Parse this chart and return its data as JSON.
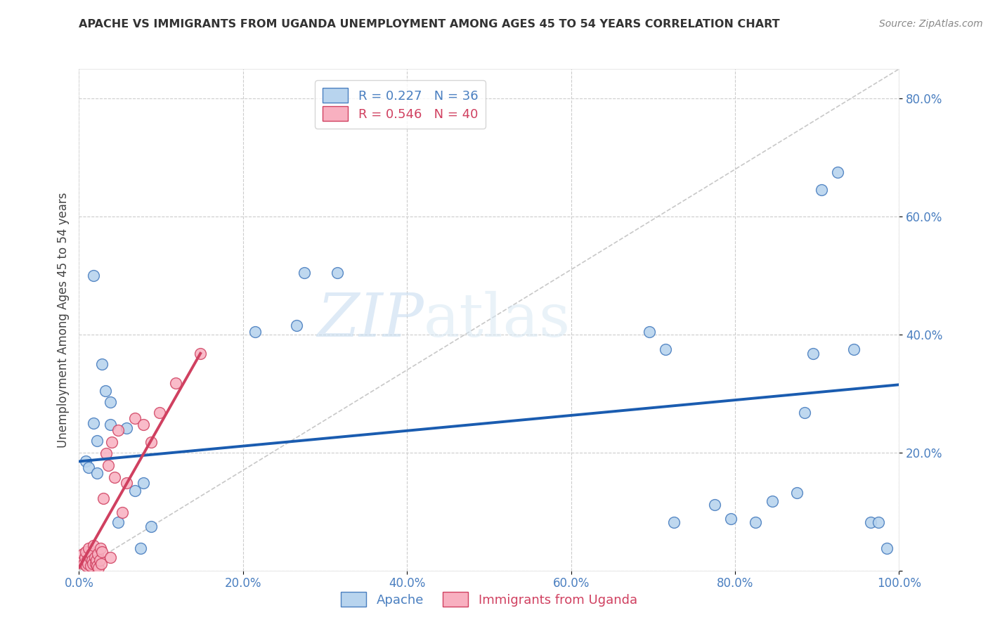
{
  "title": "APACHE VS IMMIGRANTS FROM UGANDA UNEMPLOYMENT AMONG AGES 45 TO 54 YEARS CORRELATION CHART",
  "source": "Source: ZipAtlas.com",
  "ylabel": "Unemployment Among Ages 45 to 54 years",
  "xlim": [
    0.0,
    1.0
  ],
  "ylim": [
    0.0,
    0.85
  ],
  "apache_color": "#b8d4ee",
  "apache_edge_color": "#4a7fc0",
  "uganda_color": "#f8b0c0",
  "uganda_edge_color": "#d04060",
  "background_color": "#ffffff",
  "grid_color": "#cccccc",
  "watermark_zip": "ZIP",
  "watermark_atlas": "atlas",
  "apache_line_color": "#1a5cb0",
  "uganda_line_color": "#d04060",
  "diagonal_color": "#c8c8c8",
  "title_color": "#333333",
  "source_color": "#888888",
  "tick_color": "#4a7fc0",
  "ylabel_color": "#444444",
  "apache_points": [
    [
      0.018,
      0.5
    ],
    [
      0.028,
      0.35
    ],
    [
      0.032,
      0.305
    ],
    [
      0.038,
      0.285
    ],
    [
      0.018,
      0.25
    ],
    [
      0.022,
      0.22
    ],
    [
      0.008,
      0.185
    ],
    [
      0.012,
      0.175
    ],
    [
      0.022,
      0.165
    ],
    [
      0.038,
      0.248
    ],
    [
      0.058,
      0.242
    ],
    [
      0.068,
      0.135
    ],
    [
      0.048,
      0.082
    ],
    [
      0.078,
      0.148
    ],
    [
      0.088,
      0.075
    ],
    [
      0.075,
      0.038
    ],
    [
      0.215,
      0.405
    ],
    [
      0.275,
      0.505
    ],
    [
      0.315,
      0.505
    ],
    [
      0.265,
      0.415
    ],
    [
      0.695,
      0.405
    ],
    [
      0.715,
      0.375
    ],
    [
      0.725,
      0.082
    ],
    [
      0.775,
      0.112
    ],
    [
      0.795,
      0.088
    ],
    [
      0.825,
      0.082
    ],
    [
      0.845,
      0.118
    ],
    [
      0.875,
      0.132
    ],
    [
      0.885,
      0.268
    ],
    [
      0.895,
      0.368
    ],
    [
      0.905,
      0.645
    ],
    [
      0.925,
      0.675
    ],
    [
      0.945,
      0.375
    ],
    [
      0.965,
      0.082
    ],
    [
      0.975,
      0.082
    ],
    [
      0.985,
      0.038
    ]
  ],
  "uganda_points": [
    [
      0.003,
      0.018
    ],
    [
      0.005,
      0.028
    ],
    [
      0.006,
      0.012
    ],
    [
      0.007,
      0.022
    ],
    [
      0.008,
      0.032
    ],
    [
      0.009,
      0.008
    ],
    [
      0.01,
      0.018
    ],
    [
      0.011,
      0.012
    ],
    [
      0.012,
      0.038
    ],
    [
      0.013,
      0.022
    ],
    [
      0.014,
      0.008
    ],
    [
      0.015,
      0.028
    ],
    [
      0.016,
      0.018
    ],
    [
      0.017,
      0.012
    ],
    [
      0.018,
      0.042
    ],
    [
      0.019,
      0.022
    ],
    [
      0.02,
      0.012
    ],
    [
      0.021,
      0.018
    ],
    [
      0.022,
      0.008
    ],
    [
      0.023,
      0.028
    ],
    [
      0.024,
      0.004
    ],
    [
      0.025,
      0.018
    ],
    [
      0.026,
      0.038
    ],
    [
      0.027,
      0.012
    ],
    [
      0.028,
      0.032
    ],
    [
      0.03,
      0.122
    ],
    [
      0.033,
      0.198
    ],
    [
      0.036,
      0.178
    ],
    [
      0.038,
      0.022
    ],
    [
      0.04,
      0.218
    ],
    [
      0.043,
      0.158
    ],
    [
      0.048,
      0.238
    ],
    [
      0.053,
      0.098
    ],
    [
      0.058,
      0.148
    ],
    [
      0.068,
      0.258
    ],
    [
      0.078,
      0.248
    ],
    [
      0.088,
      0.218
    ],
    [
      0.098,
      0.268
    ],
    [
      0.118,
      0.318
    ],
    [
      0.148,
      0.368
    ]
  ],
  "apache_line": [
    0.0,
    1.0
  ],
  "apache_line_y": [
    0.185,
    0.315
  ],
  "uganda_line_x": [
    0.0,
    0.148
  ],
  "uganda_line_y": [
    0.005,
    0.368
  ]
}
